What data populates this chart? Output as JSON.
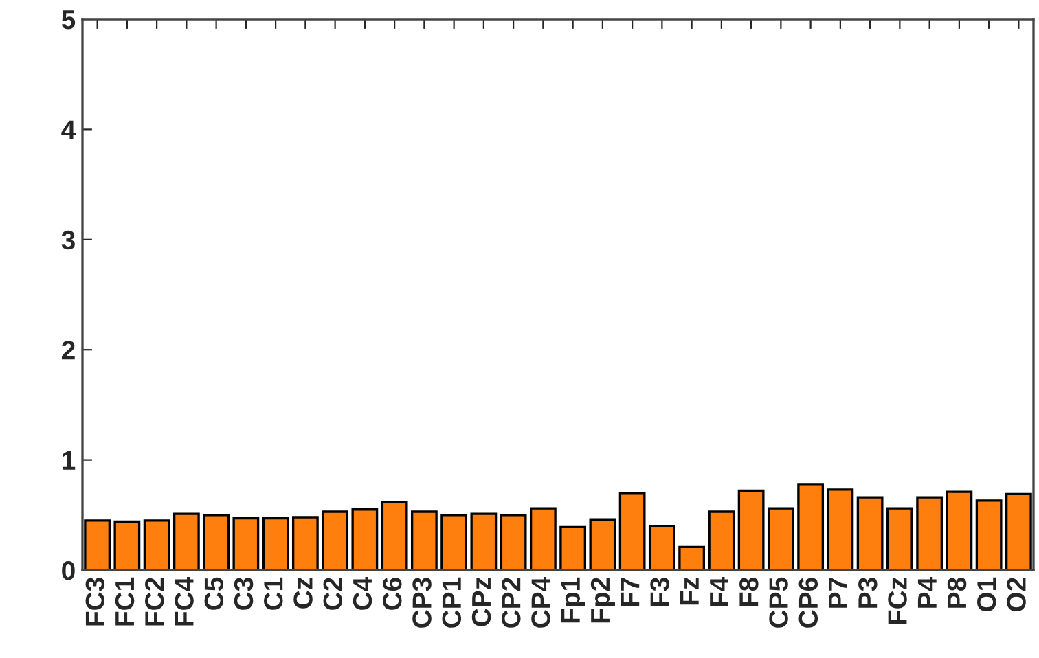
{
  "chart_data": {
    "type": "bar",
    "categories": [
      "FC3",
      "FC1",
      "FC2",
      "FC4",
      "C5",
      "C3",
      "C1",
      "Cz",
      "C2",
      "C4",
      "C6",
      "CP3",
      "CP1",
      "CPz",
      "CP2",
      "CP4",
      "Fp1",
      "Fp2",
      "F7",
      "F3",
      "Fz",
      "F4",
      "F8",
      "CP5",
      "CP6",
      "P7",
      "P3",
      "FCz",
      "P4",
      "P8",
      "O1",
      "O2"
    ],
    "values": [
      0.45,
      0.44,
      0.45,
      0.51,
      0.5,
      0.47,
      0.47,
      0.48,
      0.53,
      0.55,
      0.62,
      0.53,
      0.5,
      0.51,
      0.5,
      0.56,
      0.39,
      0.46,
      0.7,
      0.4,
      0.21,
      0.53,
      0.72,
      0.56,
      0.78,
      0.73,
      0.66,
      0.56,
      0.66,
      0.71,
      0.63,
      0.69
    ],
    "color": "#ff7f0e",
    "ylim": [
      0,
      5
    ],
    "yticks": [
      0,
      1,
      2,
      3,
      4,
      5
    ],
    "grid": false,
    "legend": false
  }
}
